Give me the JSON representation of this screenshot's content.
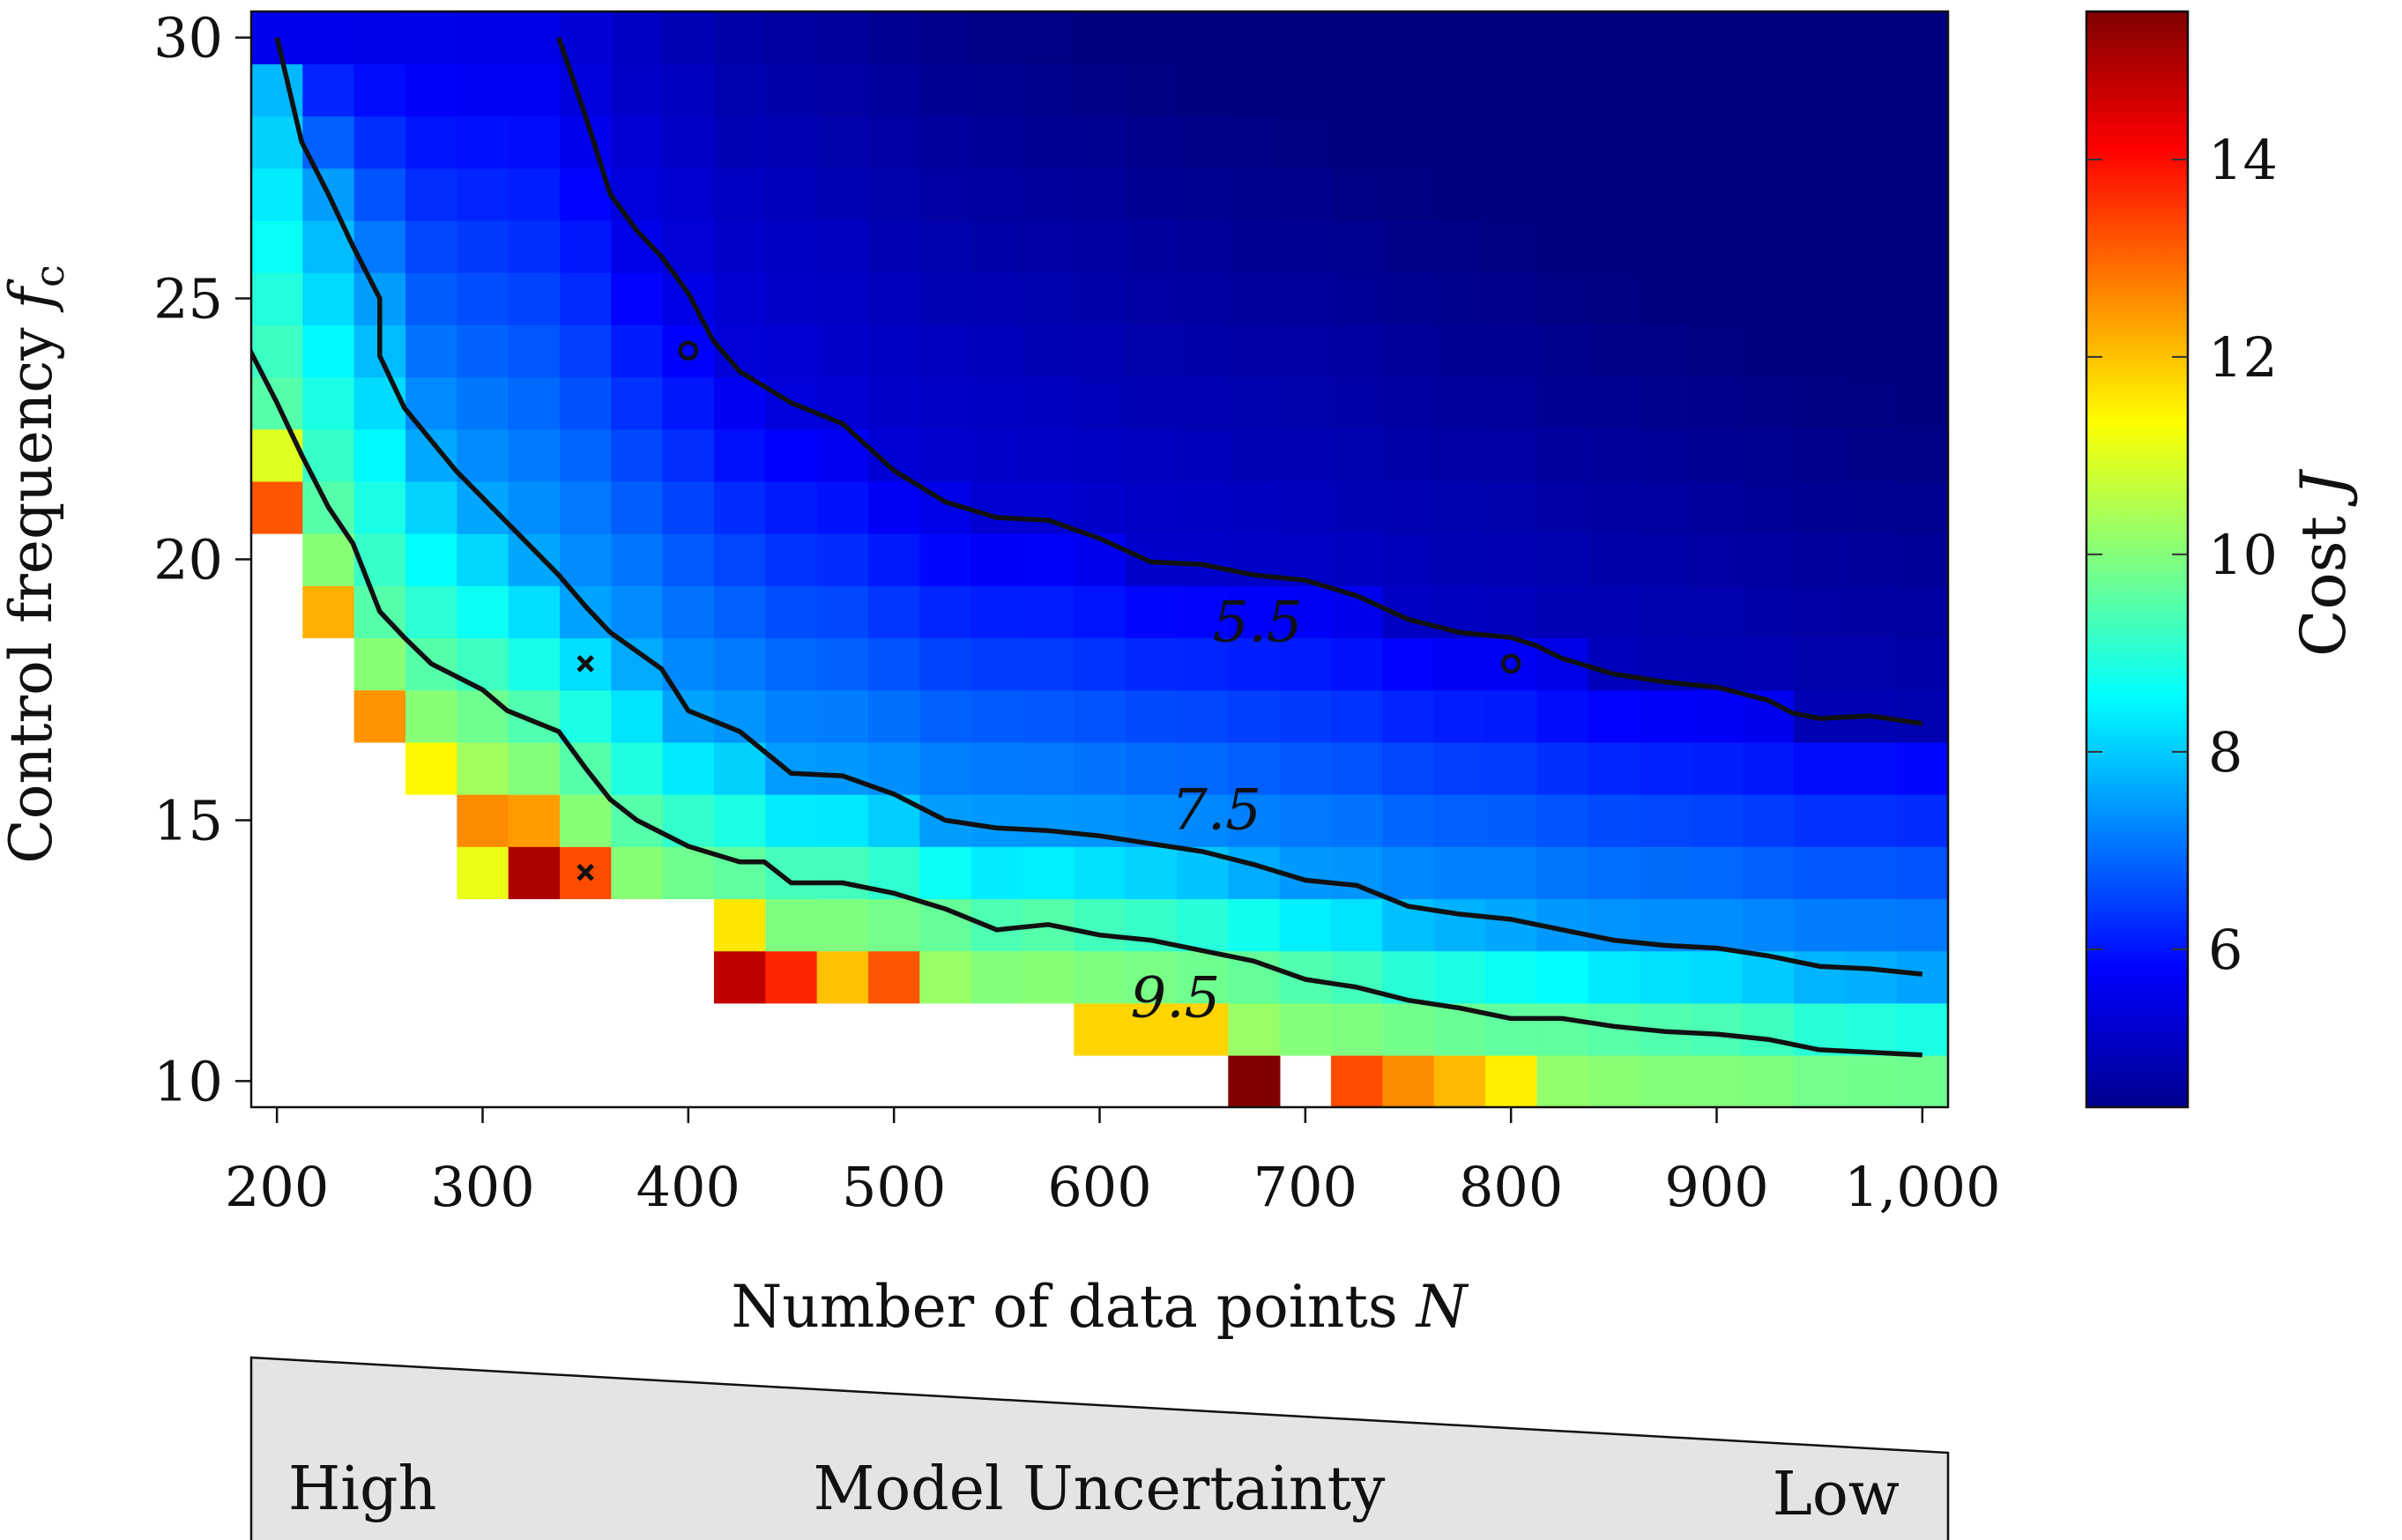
{
  "chart_data": {
    "type": "heatmap",
    "xlabel": "Number of data points N",
    "ylabel": "Control frequency f_c",
    "colorbar_label": "Cost J",
    "x": [
      200,
      225,
      250,
      275,
      300,
      325,
      350,
      375,
      400,
      425,
      450,
      475,
      500,
      525,
      550,
      575,
      600,
      625,
      650,
      675,
      700,
      725,
      750,
      775,
      800,
      825,
      850,
      875,
      900,
      925,
      950,
      975,
      1000
    ],
    "y": [
      10,
      11,
      12,
      13,
      14,
      15,
      16,
      17,
      18,
      19,
      20,
      21,
      22,
      23,
      24,
      25,
      26,
      27,
      28,
      29,
      30
    ],
    "xlim": [
      187.5,
      1012.5
    ],
    "ylim": [
      9.5,
      30.5
    ],
    "x_ticks": [
      200,
      300,
      400,
      500,
      600,
      700,
      800,
      900,
      1000
    ],
    "x_tick_labels": [
      "200",
      "300",
      "400",
      "500",
      "600",
      "700",
      "800",
      "900",
      "1,000"
    ],
    "y_ticks": [
      10,
      15,
      20,
      25,
      30
    ],
    "y_tick_labels": [
      "10",
      "15",
      "20",
      "25",
      "30"
    ],
    "color_range": [
      4.4,
      15.5
    ],
    "colorbar_ticks": [
      6,
      8,
      10,
      12,
      14
    ],
    "colorbar_tick_labels": [
      "6",
      "8",
      "10",
      "12",
      "14"
    ],
    "missing_cells": "white (no value) in lower-left region",
    "highlighted_cells": [
      {
        "n": 200,
        "f": 21,
        "value": 13.2
      },
      {
        "n": 200,
        "f": 22,
        "value": 11.0
      },
      {
        "n": 225,
        "f": 19,
        "value": 12.2
      },
      {
        "n": 250,
        "f": 17,
        "value": 12.5
      },
      {
        "n": 275,
        "f": 16,
        "value": 11.4
      },
      {
        "n": 300,
        "f": 15,
        "value": 12.6
      },
      {
        "n": 325,
        "f": 15,
        "value": 12.4
      },
      {
        "n": 325,
        "f": 14,
        "value": 15.0
      },
      {
        "n": 350,
        "f": 14,
        "value": 13.3
      },
      {
        "n": 425,
        "f": 13,
        "value": 11.6
      },
      {
        "n": 425,
        "f": 12,
        "value": 14.8
      },
      {
        "n": 450,
        "f": 12,
        "value": 13.7
      },
      {
        "n": 475,
        "f": 12,
        "value": 12.0
      },
      {
        "n": 500,
        "f": 12,
        "value": 13.2
      },
      {
        "n": 600,
        "f": 11,
        "value": 11.8
      },
      {
        "n": 625,
        "f": 11,
        "value": 11.8
      },
      {
        "n": 650,
        "f": 11,
        "value": 11.8
      },
      {
        "n": 675,
        "f": 10,
        "value": 15.5
      },
      {
        "n": 725,
        "f": 10,
        "value": 13.3
      },
      {
        "n": 750,
        "f": 10,
        "value": 12.6
      },
      {
        "n": 775,
        "f": 10,
        "value": 12.1
      },
      {
        "n": 800,
        "f": 10,
        "value": 11.5
      }
    ],
    "contours": [
      {
        "level": "5.5",
        "label_at": [
          655,
          18.8
        ],
        "points": [
          [
            337,
            30
          ],
          [
            350,
            28.5
          ],
          [
            362,
            27
          ],
          [
            375,
            26.3
          ],
          [
            387,
            25.8
          ],
          [
            400,
            25.1
          ],
          [
            412,
            24.2
          ],
          [
            425,
            23.6
          ],
          [
            450,
            23.0
          ],
          [
            475,
            22.6
          ],
          [
            500,
            21.7
          ],
          [
            525,
            21.1
          ],
          [
            550,
            20.8
          ],
          [
            575,
            20.75
          ],
          [
            600,
            20.4
          ],
          [
            625,
            19.95
          ],
          [
            650,
            19.9
          ],
          [
            675,
            19.7
          ],
          [
            700,
            19.6
          ],
          [
            725,
            19.3
          ],
          [
            750,
            18.85
          ],
          [
            775,
            18.6
          ],
          [
            800,
            18.5
          ],
          [
            812,
            18.35
          ],
          [
            825,
            18.1
          ],
          [
            850,
            17.8
          ],
          [
            875,
            17.65
          ],
          [
            900,
            17.55
          ],
          [
            925,
            17.3
          ],
          [
            937,
            17.05
          ],
          [
            950,
            16.95
          ],
          [
            975,
            17.0
          ],
          [
            1000,
            16.85
          ]
        ]
      },
      {
        "level": "7.5",
        "label_at": [
          635,
          15.2
        ],
        "points": [
          [
            200,
            30
          ],
          [
            212,
            28
          ],
          [
            225,
            27
          ],
          [
            237,
            26
          ],
          [
            250,
            25
          ],
          [
            250,
            23.9
          ],
          [
            262,
            22.9
          ],
          [
            287,
            21.7
          ],
          [
            312,
            20.7
          ],
          [
            337,
            19.7
          ],
          [
            350,
            19.1
          ],
          [
            362,
            18.6
          ],
          [
            387,
            17.9
          ],
          [
            400,
            17.1
          ],
          [
            425,
            16.7
          ],
          [
            450,
            15.9
          ],
          [
            475,
            15.85
          ],
          [
            500,
            15.5
          ],
          [
            525,
            15.0
          ],
          [
            550,
            14.85
          ],
          [
            575,
            14.8
          ],
          [
            600,
            14.7
          ],
          [
            625,
            14.55
          ],
          [
            650,
            14.4
          ],
          [
            675,
            14.15
          ],
          [
            700,
            13.85
          ],
          [
            725,
            13.75
          ],
          [
            750,
            13.35
          ],
          [
            775,
            13.2
          ],
          [
            800,
            13.1
          ],
          [
            825,
            12.9
          ],
          [
            850,
            12.7
          ],
          [
            875,
            12.6
          ],
          [
            900,
            12.55
          ],
          [
            925,
            12.4
          ],
          [
            950,
            12.2
          ],
          [
            975,
            12.15
          ],
          [
            1000,
            12.05
          ]
        ]
      },
      {
        "level": "9.5",
        "label_at": [
          615,
          11.6
        ],
        "points": [
          [
            187,
            24
          ],
          [
            200,
            23
          ],
          [
            212,
            22
          ],
          [
            225,
            21
          ],
          [
            237,
            20.3
          ],
          [
            250,
            19.0
          ],
          [
            262,
            18.5
          ],
          [
            275,
            18.0
          ],
          [
            300,
            17.5
          ],
          [
            312,
            17.1
          ],
          [
            337,
            16.7
          ],
          [
            350,
            16.0
          ],
          [
            362,
            15.4
          ],
          [
            375,
            15.0
          ],
          [
            400,
            14.5
          ],
          [
            425,
            14.2
          ],
          [
            437,
            14.2
          ],
          [
            450,
            13.8
          ],
          [
            475,
            13.8
          ],
          [
            500,
            13.6
          ],
          [
            525,
            13.3
          ],
          [
            550,
            12.9
          ],
          [
            575,
            13.0
          ],
          [
            600,
            12.8
          ],
          [
            625,
            12.7
          ],
          [
            650,
            12.5
          ],
          [
            675,
            12.3
          ],
          [
            700,
            11.95
          ],
          [
            725,
            11.8
          ],
          [
            750,
            11.55
          ],
          [
            775,
            11.4
          ],
          [
            800,
            11.2
          ],
          [
            825,
            11.2
          ],
          [
            850,
            11.05
          ],
          [
            875,
            10.95
          ],
          [
            900,
            10.9
          ],
          [
            925,
            10.8
          ],
          [
            950,
            10.6
          ],
          [
            975,
            10.55
          ],
          [
            1000,
            10.5
          ]
        ]
      }
    ],
    "markers": [
      {
        "shape": "o",
        "n": 400,
        "f": 24
      },
      {
        "shape": "o",
        "n": 800,
        "f": 18
      },
      {
        "shape": "x",
        "n": 350,
        "f": 18
      },
      {
        "shape": "x",
        "n": 350,
        "f": 14
      }
    ],
    "wedge": {
      "label": "Model Uncertainty",
      "left_label": "High",
      "right_label": "Low"
    },
    "grid": false
  },
  "labels": {
    "xlabel_text": "Number of data points ",
    "xlabel_var": "N",
    "ylabel_text": "Control frequency ",
    "ylabel_var": "f",
    "ylabel_sub": "c",
    "colorbar_text": "Cost ",
    "colorbar_var": "J"
  },
  "colors": {
    "contour": "#111111",
    "wedge_fill": "#e4e4e4",
    "missing": "#ffffff"
  }
}
